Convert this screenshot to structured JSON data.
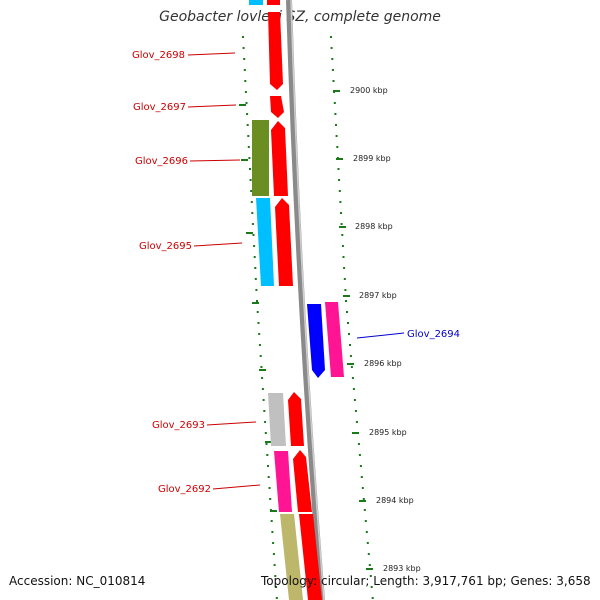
{
  "title": "Geobacter lovleyi SZ, complete genome",
  "footer": {
    "accession": "Accession: NC_010814",
    "topology": "Topology: circular; Length: 3,917,761 bp; Genes: 3,658"
  },
  "colors": {
    "backbone": "#8a8a8a",
    "tick_dot": "#1a7a1a",
    "forward_label": "#cc0000",
    "reverse_label": "#0000cc",
    "cds_red": "#ff0000",
    "blue": "#0000ff",
    "magenta": "#ff1493",
    "olive": "#6b8e23",
    "cyan": "#00bfff",
    "silver": "#c0c0c0",
    "khaki": "#bdb76b"
  },
  "gene_labels": [
    {
      "text": "Glov_2698",
      "strand": "forward"
    },
    {
      "text": "Glov_2697",
      "strand": "forward"
    },
    {
      "text": "Glov_2696",
      "strand": "forward"
    },
    {
      "text": "Glov_2695",
      "strand": "forward"
    },
    {
      "text": "Glov_2694",
      "strand": "reverse"
    },
    {
      "text": "Glov_2693",
      "strand": "forward"
    },
    {
      "text": "Glov_2692",
      "strand": "forward"
    }
  ],
  "ticks": [
    "2900 kbp",
    "2899 kbp",
    "2898 kbp",
    "2897 kbp",
    "2896 kbp",
    "2895 kbp",
    "2894 kbp",
    "2893 kbp"
  ]
}
